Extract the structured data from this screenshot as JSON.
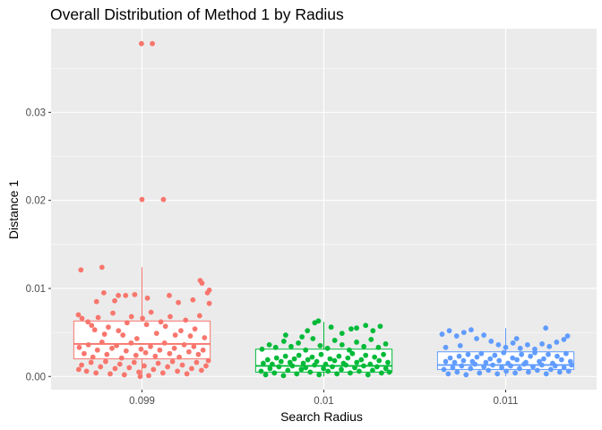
{
  "chart_data": {
    "type": "box",
    "title": "Overall Distribution of Method 1 by Radius",
    "xlabel": "Search Radius",
    "ylabel": "Distance 1",
    "categories": [
      "0.099",
      "0.01",
      "0.011"
    ],
    "ylim": [
      -0.0015,
      0.0395
    ],
    "yticks": [
      0.0,
      0.01,
      0.02,
      0.03
    ],
    "ytick_labels": [
      "0.00",
      "0.01",
      "0.02",
      "0.03"
    ],
    "grid": true,
    "legend": "none",
    "series": [
      {
        "category": "0.099",
        "color": "#F8766D",
        "box": {
          "q1": 0.002,
          "median": 0.0037,
          "q3": 0.0063,
          "whisker_low": 0.0,
          "whisker_high": 0.0124
        },
        "points": [
          [
            -0.336,
            0.0121
          ],
          [
            -0.22,
            0.0124
          ],
          [
            -0.297,
            0.0062
          ],
          [
            -0.277,
            0.0058
          ],
          [
            -0.26,
            0.0053
          ],
          [
            -0.241,
            0.0067
          ],
          [
            -0.206,
            0.0048
          ],
          [
            -0.185,
            0.0056
          ],
          [
            -0.16,
            0.0072
          ],
          [
            -0.129,
            0.0052
          ],
          [
            -0.105,
            0.0047
          ],
          [
            -0.082,
            0.0061
          ],
          [
            -0.058,
            0.0068
          ],
          [
            -0.028,
            0.0043
          ],
          [
            0.003,
            0.0066
          ],
          [
            0.025,
            0.0059
          ],
          [
            0.05,
            0.0073
          ],
          [
            0.08,
            0.0049
          ],
          [
            0.104,
            0.0062
          ],
          [
            0.129,
            0.0057
          ],
          [
            0.155,
            0.0068
          ],
          [
            0.183,
            0.0047
          ],
          [
            0.214,
            0.0052
          ],
          [
            0.24,
            0.0064
          ],
          [
            0.266,
            0.0046
          ],
          [
            0.291,
            0.0054
          ],
          [
            0.317,
            0.0069
          ],
          [
            0.344,
            0.0044
          ],
          [
            -0.35,
            0.007
          ],
          [
            -0.33,
            0.0066
          ],
          [
            -0.25,
            0.0085
          ],
          [
            -0.21,
            0.0095
          ],
          [
            -0.15,
            0.0086
          ],
          [
            -0.13,
            0.0092
          ],
          [
            -0.09,
            0.0092
          ],
          [
            -0.04,
            0.0093
          ],
          [
            0.03,
            0.0089
          ],
          [
            0.15,
            0.0092
          ],
          [
            0.2,
            0.0084
          ],
          [
            0.28,
            0.0087
          ],
          [
            0.32,
            0.0109
          ],
          [
            0.33,
            0.0106
          ],
          [
            0.36,
            0.0095
          ],
          [
            0.37,
            0.0083
          ],
          [
            0.37,
            0.0098
          ],
          [
            -0.345,
            0.0033
          ],
          [
            -0.318,
            0.0026
          ],
          [
            -0.295,
            0.0036
          ],
          [
            -0.27,
            0.0022
          ],
          [
            -0.245,
            0.003
          ],
          [
            -0.22,
            0.0039
          ],
          [
            -0.193,
            0.0025
          ],
          [
            -0.165,
            0.0032
          ],
          [
            -0.14,
            0.0035
          ],
          [
            -0.112,
            0.0021
          ],
          [
            -0.087,
            0.0029
          ],
          [
            -0.06,
            0.0038
          ],
          [
            -0.033,
            0.0024
          ],
          [
            -0.005,
            0.0031
          ],
          [
            0.02,
            0.0027
          ],
          [
            0.047,
            0.0034
          ],
          [
            0.073,
            0.0023
          ],
          [
            0.098,
            0.003
          ],
          [
            0.124,
            0.0038
          ],
          [
            0.152,
            0.0026
          ],
          [
            0.178,
            0.0032
          ],
          [
            0.205,
            0.0022
          ],
          [
            0.232,
            0.0036
          ],
          [
            0.258,
            0.0028
          ],
          [
            0.285,
            0.0034
          ],
          [
            0.31,
            0.0025
          ],
          [
            0.336,
            0.003
          ],
          [
            -0.332,
            0.0013
          ],
          [
            -0.305,
            0.0006
          ],
          [
            -0.28,
            0.0016
          ],
          [
            -0.253,
            0.0004
          ],
          [
            -0.228,
            0.0011
          ],
          [
            -0.2,
            0.0017
          ],
          [
            -0.175,
            0.0003
          ],
          [
            -0.148,
            0.0009
          ],
          [
            -0.122,
            0.0014
          ],
          [
            -0.097,
            0.0002
          ],
          [
            -0.07,
            0.001
          ],
          [
            -0.043,
            0.0016
          ],
          [
            -0.017,
            0.0005
          ],
          [
            0.012,
            0.0012
          ],
          [
            0.037,
            0.0001
          ],
          [
            0.063,
            0.0008
          ],
          [
            0.089,
            0.0015
          ],
          [
            0.115,
            0.0004
          ],
          [
            0.141,
            0.0011
          ],
          [
            0.168,
            0.0017
          ],
          [
            0.195,
            0.0006
          ],
          [
            0.222,
            0.0013
          ],
          [
            0.247,
            0.0003
          ],
          [
            0.273,
            0.0009
          ],
          [
            0.3,
            0.0016
          ],
          [
            0.327,
            0.0007
          ],
          [
            0.352,
            0.0012
          ],
          [
            -0.348,
            0.0008
          ],
          [
            0.365,
            0.0018
          ],
          [
            -0.01,
            0.0
          ],
          [
            -0.003,
            0.0378
          ],
          [
            0.057,
            0.0378
          ],
          [
            0.0,
            0.0201
          ],
          [
            0.118,
            0.0201
          ]
        ]
      },
      {
        "category": "0.01",
        "color": "#00BA38",
        "box": {
          "q1": 0.0005,
          "median": 0.0012,
          "q3": 0.0031,
          "whisker_low": 0.0,
          "whisker_high": 0.0062
        },
        "points": [
          [
            -0.345,
            0.0006
          ],
          [
            -0.32,
            0.0002
          ],
          [
            -0.296,
            0.0009
          ],
          [
            -0.272,
            0.0004
          ],
          [
            -0.247,
            0.0011
          ],
          [
            -0.222,
            0.0001
          ],
          [
            -0.198,
            0.0007
          ],
          [
            -0.173,
            0.0012
          ],
          [
            -0.149,
            0.0003
          ],
          [
            -0.124,
            0.0008
          ],
          [
            -0.1,
            0.001
          ],
          [
            -0.075,
            0.0005
          ],
          [
            -0.051,
            0.0013
          ],
          [
            -0.026,
            0.0002
          ],
          [
            -0.002,
            0.0009
          ],
          [
            0.023,
            0.0006
          ],
          [
            0.047,
            0.0011
          ],
          [
            0.072,
            0.0003
          ],
          [
            0.096,
            0.0008
          ],
          [
            0.121,
            0.0013
          ],
          [
            0.145,
            0.0004
          ],
          [
            0.17,
            0.001
          ],
          [
            0.194,
            0.0006
          ],
          [
            0.219,
            0.0012
          ],
          [
            0.243,
            0.0002
          ],
          [
            0.268,
            0.0007
          ],
          [
            0.292,
            0.0011
          ],
          [
            0.317,
            0.0004
          ],
          [
            0.341,
            0.0009
          ],
          [
            0.36,
            0.0005
          ],
          [
            -0.333,
            0.0015
          ],
          [
            -0.309,
            0.0019
          ],
          [
            -0.284,
            0.0014
          ],
          [
            -0.26,
            0.0021
          ],
          [
            -0.235,
            0.0017
          ],
          [
            -0.211,
            0.0023
          ],
          [
            -0.186,
            0.0016
          ],
          [
            -0.162,
            0.002
          ],
          [
            -0.137,
            0.0024
          ],
          [
            -0.113,
            0.0015
          ],
          [
            -0.088,
            0.0019
          ],
          [
            -0.064,
            0.0022
          ],
          [
            -0.039,
            0.0017
          ],
          [
            -0.015,
            0.0025
          ],
          [
            0.01,
            0.0014
          ],
          [
            0.034,
            0.002
          ],
          [
            0.059,
            0.0018
          ],
          [
            0.083,
            0.0023
          ],
          [
            0.108,
            0.0015
          ],
          [
            0.132,
            0.0021
          ],
          [
            0.157,
            0.0026
          ],
          [
            0.181,
            0.0016
          ],
          [
            0.206,
            0.0019
          ],
          [
            0.23,
            0.0024
          ],
          [
            0.255,
            0.0014
          ],
          [
            0.279,
            0.0022
          ],
          [
            0.304,
            0.0018
          ],
          [
            0.328,
            0.0025
          ],
          [
            0.352,
            0.0016
          ],
          [
            -0.34,
            0.0031
          ],
          [
            -0.3,
            0.0036
          ],
          [
            -0.265,
            0.0033
          ],
          [
            -0.22,
            0.004
          ],
          [
            -0.18,
            0.0034
          ],
          [
            -0.14,
            0.0038
          ],
          [
            -0.1,
            0.003
          ],
          [
            -0.06,
            0.0043
          ],
          [
            -0.02,
            0.0035
          ],
          [
            0.02,
            0.0032
          ],
          [
            0.06,
            0.0041
          ],
          [
            0.1,
            0.0036
          ],
          [
            0.14,
            0.003
          ],
          [
            0.18,
            0.0039
          ],
          [
            0.22,
            0.0034
          ],
          [
            0.26,
            0.0042
          ],
          [
            0.3,
            0.0033
          ],
          [
            0.34,
            0.0037
          ],
          [
            -0.03,
            0.0063
          ],
          [
            -0.05,
            0.0061
          ],
          [
            0.04,
            0.0056
          ],
          [
            0.1,
            0.0049
          ],
          [
            0.18,
            0.0055
          ],
          [
            0.23,
            0.0058
          ],
          [
            0.27,
            0.0052
          ],
          [
            0.31,
            0.0057
          ],
          [
            -0.21,
            0.0047
          ],
          [
            -0.12,
            0.0045
          ],
          [
            0.15,
            0.0054
          ],
          [
            -0.09,
            0.0052
          ]
        ]
      },
      {
        "category": "0.011",
        "color": "#619CFF",
        "box": {
          "q1": 0.0008,
          "median": 0.0013,
          "q3": 0.0028,
          "whisker_low": 0.0,
          "whisker_high": 0.0055
        },
        "points": [
          [
            -0.34,
            0.0008
          ],
          [
            -0.316,
            0.0003
          ],
          [
            -0.291,
            0.001
          ],
          [
            -0.267,
            0.0005
          ],
          [
            -0.242,
            0.0012
          ],
          [
            -0.218,
            0.0002
          ],
          [
            -0.193,
            0.0009
          ],
          [
            -0.169,
            0.0014
          ],
          [
            -0.144,
            0.0004
          ],
          [
            -0.12,
            0.0011
          ],
          [
            -0.095,
            0.0007
          ],
          [
            -0.071,
            0.0013
          ],
          [
            -0.046,
            0.0003
          ],
          [
            -0.022,
            0.001
          ],
          [
            0.003,
            0.0006
          ],
          [
            0.027,
            0.0012
          ],
          [
            0.052,
            0.0004
          ],
          [
            0.076,
            0.0009
          ],
          [
            0.101,
            0.0014
          ],
          [
            0.125,
            0.0005
          ],
          [
            0.15,
            0.0011
          ],
          [
            0.174,
            0.0007
          ],
          [
            0.199,
            0.0013
          ],
          [
            0.223,
            0.0003
          ],
          [
            0.248,
            0.0008
          ],
          [
            0.272,
            0.0012
          ],
          [
            0.297,
            0.0005
          ],
          [
            0.321,
            0.001
          ],
          [
            0.346,
            0.0006
          ],
          [
            0.362,
            0.0013
          ],
          [
            -0.33,
            0.0017
          ],
          [
            -0.305,
            0.0021
          ],
          [
            -0.281,
            0.0016
          ],
          [
            -0.256,
            0.0023
          ],
          [
            -0.232,
            0.0018
          ],
          [
            -0.207,
            0.0025
          ],
          [
            -0.183,
            0.0017
          ],
          [
            -0.158,
            0.0022
          ],
          [
            -0.134,
            0.0026
          ],
          [
            -0.109,
            0.0016
          ],
          [
            -0.085,
            0.002
          ],
          [
            -0.06,
            0.0024
          ],
          [
            -0.036,
            0.0018
          ],
          [
            -0.011,
            0.0027
          ],
          [
            0.013,
            0.0015
          ],
          [
            0.038,
            0.0021
          ],
          [
            0.062,
            0.0019
          ],
          [
            0.087,
            0.0025
          ],
          [
            0.111,
            0.0016
          ],
          [
            0.136,
            0.0023
          ],
          [
            0.16,
            0.0027
          ],
          [
            0.185,
            0.0017
          ],
          [
            0.209,
            0.002
          ],
          [
            0.234,
            0.0025
          ],
          [
            0.258,
            0.0015
          ],
          [
            0.283,
            0.0023
          ],
          [
            0.307,
            0.0019
          ],
          [
            0.332,
            0.0026
          ],
          [
            0.356,
            0.0017
          ],
          [
            -0.35,
            0.0048
          ],
          [
            -0.31,
            0.0052
          ],
          [
            -0.27,
            0.0046
          ],
          [
            -0.23,
            0.005
          ],
          [
            -0.19,
            0.0053
          ],
          [
            -0.16,
            0.0043
          ],
          [
            -0.12,
            0.0047
          ],
          [
            -0.08,
            0.004
          ],
          [
            -0.04,
            0.0036
          ],
          [
            0.0,
            0.0033
          ],
          [
            0.04,
            0.0038
          ],
          [
            0.08,
            0.0032
          ],
          [
            0.12,
            0.0036
          ],
          [
            0.16,
            0.0031
          ],
          [
            0.2,
            0.0037
          ],
          [
            0.24,
            0.0034
          ],
          [
            0.28,
            0.0039
          ],
          [
            0.32,
            0.0042
          ],
          [
            0.34,
            0.0046
          ],
          [
            -0.33,
            0.0033
          ],
          [
            -0.25,
            0.0035
          ],
          [
            0.22,
            0.0055
          ],
          [
            0.06,
            0.0043
          ]
        ]
      }
    ]
  }
}
